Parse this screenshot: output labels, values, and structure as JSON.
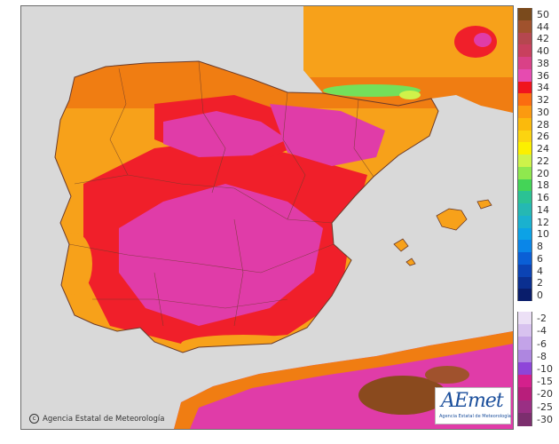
{
  "map": {
    "type": "temperature-map",
    "region": "Iberian Peninsula, Balearic Islands and North Africa",
    "colors": {
      "sea": "#d9d9d9",
      "orange": "#f7a11a",
      "dark_orange": "#f07d12",
      "red": "#f01f2a",
      "magenta": "#e03ca8",
      "green": "#74e05a",
      "brown": "#8a4a1e"
    }
  },
  "copyright": "Agencia Estatal de Meteorología",
  "logo": {
    "word": "AEmet",
    "subtitle": "Agencia Estatal de Meteorología"
  },
  "legend": {
    "items": [
      {
        "label": "50",
        "color": "#7a4a1c"
      },
      {
        "label": "44",
        "color": "#a0522d"
      },
      {
        "label": "42",
        "color": "#b5474f"
      },
      {
        "label": "40",
        "color": "#c8405e"
      },
      {
        "label": "38",
        "color": "#d94187"
      },
      {
        "label": "36",
        "color": "#e64bb0"
      },
      {
        "label": "34",
        "color": "#f0141e"
      },
      {
        "label": "32",
        "color": "#fb6c10"
      },
      {
        "label": "30",
        "color": "#fb9a10"
      },
      {
        "label": "28",
        "color": "#fbba0c"
      },
      {
        "label": "26",
        "color": "#fcd410"
      },
      {
        "label": "24",
        "color": "#fcf000"
      },
      {
        "label": "22",
        "color": "#cef34a"
      },
      {
        "label": "20",
        "color": "#8fe84e"
      },
      {
        "label": "18",
        "color": "#44d457"
      },
      {
        "label": "16",
        "color": "#2bc294"
      },
      {
        "label": "14",
        "color": "#25b8b3"
      },
      {
        "label": "12",
        "color": "#1ab1cf"
      },
      {
        "label": "10",
        "color": "#0ca2e6"
      },
      {
        "label": "8",
        "color": "#0a86e8"
      },
      {
        "label": "6",
        "color": "#0a5fd6"
      },
      {
        "label": "4",
        "color": "#0b43b4"
      },
      {
        "label": "2",
        "color": "#0a2f90"
      },
      {
        "label": "0",
        "color": "#091d6b"
      },
      {
        "label": "-2",
        "color": "#ece0f6"
      },
      {
        "label": "-4",
        "color": "#d8c2ef"
      },
      {
        "label": "-6",
        "color": "#c3a3e8"
      },
      {
        "label": "-8",
        "color": "#ae86e0"
      },
      {
        "label": "-10",
        "color": "#8e45d9"
      },
      {
        "label": "-15",
        "color": "#d4208c"
      },
      {
        "label": "-20",
        "color": "#b81e7b"
      },
      {
        "label": "-25",
        "color": "#9a2f84"
      },
      {
        "label": "-30",
        "color": "#7c2e6e"
      }
    ]
  }
}
